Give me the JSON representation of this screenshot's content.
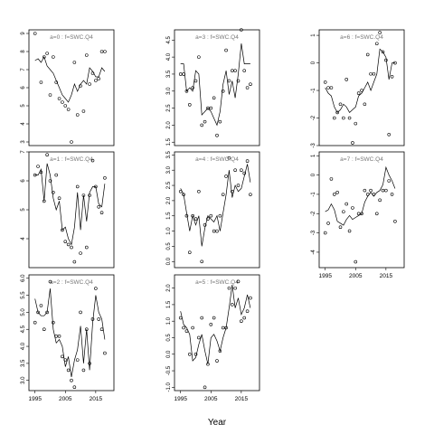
{
  "xlabel": "Year",
  "chart_data": [
    {
      "type": "scatter",
      "title": "a=0 : f=SWC.Q4",
      "xlim": [
        1993,
        2021
      ],
      "ylim": [
        2.8,
        9.2
      ],
      "yticks": [
        3,
        4,
        5,
        6,
        7,
        8,
        9
      ],
      "xticks": [],
      "ytick_labels": [
        "3",
        "4",
        "5",
        "6",
        "7",
        "8",
        "9"
      ],
      "xtick_labels": [],
      "points": {
        "x": [
          1995,
          1997,
          1998,
          1999,
          2000,
          2001,
          2002,
          2003,
          2004,
          2005,
          2006,
          2007,
          2008,
          2009,
          2010,
          2011,
          2012,
          2013,
          2014,
          2015,
          2016,
          2017,
          2018
        ],
        "y": [
          9.0,
          6.3,
          7.7,
          7.9,
          5.6,
          7.7,
          6.3,
          5.4,
          5.2,
          5.0,
          4.8,
          3.0,
          7.4,
          4.5,
          6.1,
          4.7,
          7.8,
          6.2,
          6.8,
          6.4,
          6.5,
          8.0,
          8.0
        ]
      },
      "line": {
        "x": [
          1995,
          1996,
          1997,
          1998,
          1999,
          2000,
          2001,
          2002,
          2003,
          2004,
          2005,
          2006,
          2007,
          2008,
          2009,
          2010,
          2011,
          2012,
          2013,
          2014,
          2015,
          2016,
          2017,
          2018
        ],
        "y": [
          7.5,
          7.6,
          7.4,
          7.7,
          7.2,
          7.0,
          6.8,
          6.4,
          6.0,
          5.6,
          5.4,
          5.2,
          5.6,
          6.2,
          5.8,
          6.2,
          6.4,
          6.2,
          7.1,
          6.9,
          6.6,
          6.6,
          7.1,
          6.9
        ]
      }
    },
    {
      "type": "scatter",
      "title": "a=3 : f=SWC.Q4",
      "xlim": [
        1993,
        2021
      ],
      "ylim": [
        1.4,
        4.8
      ],
      "yticks": [
        1.5,
        2.0,
        2.5,
        3.0,
        3.5,
        4.0,
        4.5
      ],
      "xticks": [],
      "ytick_labels": [
        "1.5",
        "2.0",
        "2.5",
        "3.0",
        "3.5",
        "4.0",
        "4.5"
      ],
      "xtick_labels": [],
      "points": {
        "x": [
          1995,
          1996,
          1997,
          1998,
          1999,
          2000,
          2001,
          2002,
          2003,
          2004,
          2005,
          2006,
          2007,
          2008,
          2009,
          2010,
          2011,
          2012,
          2013,
          2014,
          2015,
          2016,
          2017,
          2018
        ],
        "y": [
          3.5,
          3.5,
          3.0,
          2.6,
          3.1,
          3.3,
          4.0,
          2.0,
          2.1,
          2.5,
          2.5,
          2.8,
          1.7,
          2.1,
          3.0,
          4.2,
          3.3,
          3.6,
          3.6,
          3.3,
          4.8,
          3.6,
          3.1,
          3.2
        ]
      },
      "line": {
        "x": [
          1995,
          1996,
          1997,
          1998,
          1999,
          2000,
          2001,
          2002,
          2003,
          2004,
          2005,
          2006,
          2007,
          2008,
          2009,
          2010,
          2011,
          2012,
          2013,
          2014,
          2015,
          2016,
          2017,
          2018
        ],
        "y": [
          3.8,
          3.8,
          3.0,
          3.1,
          3.0,
          3.6,
          3.5,
          2.3,
          2.4,
          2.5,
          2.4,
          2.2,
          2.0,
          2.4,
          3.2,
          3.6,
          2.9,
          3.3,
          2.8,
          3.5,
          4.4,
          3.8,
          3.8,
          3.8
        ]
      }
    },
    {
      "type": "scatter",
      "title": "a=6 : f=SWC.Q4",
      "xlim": [
        1993,
        2021
      ],
      "ylim": [
        -3.0,
        1.2
      ],
      "yticks": [
        -3,
        -2,
        -1,
        0,
        1
      ],
      "xticks": [],
      "ytick_labels": [
        "-3",
        "-2",
        "-1",
        "0",
        "1"
      ],
      "xtick_labels": [],
      "points": {
        "x": [
          1995,
          1996,
          1997,
          1998,
          1999,
          2000,
          2001,
          2002,
          2003,
          2004,
          2005,
          2006,
          2007,
          2008,
          2009,
          2010,
          2011,
          2012,
          2013,
          2014,
          2015,
          2016,
          2017,
          2018
        ],
        "y": [
          -0.7,
          -0.9,
          -0.9,
          -2.0,
          -1.8,
          -1.5,
          -2.0,
          -0.6,
          -2.0,
          -2.9,
          -2.2,
          -1.1,
          -1.0,
          -1.5,
          0.3,
          -0.4,
          -0.4,
          0.7,
          1.1,
          0.4,
          0.1,
          -2.6,
          -0.5,
          0.0
        ]
      },
      "line": {
        "x": [
          1995,
          1996,
          1997,
          1998,
          1999,
          2000,
          2001,
          2002,
          2003,
          2004,
          2005,
          2006,
          2007,
          2008,
          2009,
          2010,
          2011,
          2012,
          2013,
          2014,
          2015,
          2016,
          2017,
          2018
        ],
        "y": [
          -0.9,
          -1.1,
          -1.2,
          -1.6,
          -1.8,
          -1.7,
          -1.5,
          -1.6,
          -1.8,
          -1.7,
          -1.6,
          -1.2,
          -1.1,
          -0.9,
          -0.7,
          -1.0,
          -0.7,
          -0.4,
          0.5,
          0.4,
          0.2,
          -0.6,
          0.0,
          0.0
        ]
      }
    },
    {
      "type": "scatter",
      "title": "a=1 : f=SWC.Q4",
      "xlim": [
        1993,
        2021
      ],
      "ylim": [
        3.0,
        7.0
      ],
      "yticks": [
        4,
        5,
        6,
        7
      ],
      "xticks": [],
      "ytick_labels": [
        "4",
        "5",
        "6",
        "7"
      ],
      "xtick_labels": [],
      "points": {
        "x": [
          1995,
          1996,
          1997,
          1998,
          1999,
          2000,
          2001,
          2002,
          2003,
          2004,
          2005,
          2006,
          2007,
          2008,
          2009,
          2010,
          2011,
          2012,
          2013,
          2014,
          2015,
          2016,
          2017,
          2018
        ],
        "y": [
          6.2,
          6.5,
          6.3,
          5.3,
          6.9,
          6.0,
          5.6,
          6.2,
          5.4,
          4.3,
          3.9,
          3.8,
          3.7,
          3.2,
          5.8,
          3.5,
          5.5,
          3.7,
          5.5,
          6.7,
          5.8,
          5.1,
          4.9,
          6.1
        ]
      },
      "line": {
        "x": [
          1995,
          1996,
          1997,
          1998,
          1999,
          2000,
          2001,
          2002,
          2003,
          2004,
          2005,
          2006,
          2007,
          2008,
          2009,
          2010,
          2011,
          2012,
          2013,
          2014,
          2015,
          2016,
          2017,
          2018
        ],
        "y": [
          6.2,
          6.2,
          6.4,
          5.3,
          6.6,
          6.2,
          5.4,
          5.0,
          5.3,
          4.3,
          4.4,
          4.0,
          3.8,
          4.4,
          5.6,
          4.3,
          5.5,
          4.6,
          5.6,
          5.8,
          5.8,
          5.2,
          5.1,
          5.9
        ]
      }
    },
    {
      "type": "scatter",
      "title": "a=4 : f=SWC.Q4",
      "xlim": [
        1993,
        2021
      ],
      "ylim": [
        -0.2,
        3.6
      ],
      "yticks": [
        0.0,
        0.5,
        1.0,
        1.5,
        2.0,
        2.5,
        3.0,
        3.5
      ],
      "xticks": [],
      "ytick_labels": [
        "0.0",
        "0.5",
        "1.0",
        "1.5",
        "2.0",
        "2.5",
        "3.0",
        "3.5"
      ],
      "xtick_labels": [],
      "points": {
        "x": [
          1995,
          1996,
          1997,
          1998,
          1999,
          2000,
          2001,
          2002,
          2003,
          2004,
          2005,
          2006,
          2007,
          2008,
          2009,
          2010,
          2011,
          2012,
          2013,
          2014,
          2015,
          2016,
          2017,
          2018
        ],
        "y": [
          2.3,
          2.2,
          1.5,
          0.3,
          1.5,
          1.4,
          2.3,
          0.0,
          1.2,
          1.4,
          1.5,
          1.0,
          1.0,
          1.5,
          2.2,
          2.8,
          3.4,
          2.3,
          3.0,
          2.5,
          3.0,
          2.9,
          3.3,
          2.2
        ]
      },
      "line": {
        "x": [
          1995,
          1996,
          1997,
          1998,
          1999,
          2000,
          2001,
          2002,
          2003,
          2004,
          2005,
          2006,
          2007,
          2008,
          2009,
          2010,
          2011,
          2012,
          2013,
          2014,
          2015,
          2016,
          2017,
          2018
        ],
        "y": [
          2.4,
          2.2,
          1.6,
          1.0,
          1.5,
          1.2,
          1.5,
          0.5,
          1.1,
          1.5,
          1.4,
          1.3,
          1.5,
          1.0,
          1.6,
          2.2,
          3.0,
          2.1,
          2.5,
          2.3,
          2.4,
          2.8,
          3.2,
          2.6
        ]
      }
    },
    {
      "type": "scatter",
      "title": "a=7 : f=SWC.Q4",
      "xlim": [
        1993,
        2021
      ],
      "ylim": [
        -4.8,
        1.2
      ],
      "yticks": [
        -4,
        -3,
        -2,
        -1,
        0,
        1
      ],
      "xticks": [
        1995,
        2005,
        2015
      ],
      "ytick_labels": [
        "-4",
        "-3",
        "-2",
        "-1",
        "0",
        "1"
      ],
      "xtick_labels": [
        "1995",
        "2005",
        "2015"
      ],
      "points": {
        "x": [
          1995,
          1996,
          1997,
          1998,
          1999,
          2000,
          2001,
          2002,
          2003,
          2004,
          2005,
          2006,
          2007,
          2008,
          2009,
          2010,
          2011,
          2012,
          2013,
          2014,
          2015,
          2016,
          2017,
          2018
        ],
        "y": [
          -3.0,
          -2.5,
          -0.2,
          -1.0,
          -0.9,
          -2.7,
          -1.9,
          -1.5,
          -2.9,
          -1.7,
          -4.5,
          -2.0,
          -2.0,
          -0.8,
          -1.0,
          -0.8,
          -1.0,
          -2.0,
          -1.3,
          -0.8,
          -0.8,
          -0.3,
          -1.0,
          -2.4
        ]
      },
      "line": {
        "x": [
          1995,
          1996,
          1997,
          1998,
          1999,
          2000,
          2001,
          2002,
          2003,
          2004,
          2005,
          2006,
          2007,
          2008,
          2009,
          2010,
          2011,
          2012,
          2013,
          2014,
          2015,
          2016,
          2017,
          2018
        ],
        "y": [
          -1.9,
          -1.8,
          -1.5,
          -1.8,
          -2.4,
          -2.5,
          -2.6,
          -2.3,
          -2.1,
          -2.3,
          -2.2,
          -2.1,
          -2.0,
          -1.4,
          -1.1,
          -0.9,
          -1.1,
          -0.9,
          -0.8,
          -0.5,
          0.4,
          0.0,
          -0.3,
          -0.7
        ]
      }
    },
    {
      "type": "scatter",
      "title": "a=2 : f=SWC.Q4",
      "xlim": [
        1993,
        2021
      ],
      "ylim": [
        2.7,
        6.1
      ],
      "yticks": [
        3.0,
        3.5,
        4.0,
        4.5,
        5.0,
        5.5,
        6.0
      ],
      "xticks": [
        1995,
        2005,
        2015
      ],
      "ytick_labels": [
        "3.0",
        "3.5",
        "4.0",
        "4.5",
        "5.0",
        "5.5",
        "6.0"
      ],
      "xtick_labels": [
        "1995",
        "2005",
        "2015"
      ],
      "points": {
        "x": [
          1995,
          1996,
          1997,
          1998,
          1999,
          2000,
          2001,
          2002,
          2003,
          2004,
          2005,
          2006,
          2007,
          2008,
          2009,
          2010,
          2011,
          2012,
          2013,
          2014,
          2015,
          2016,
          2017,
          2018
        ],
        "y": [
          4.7,
          5.0,
          5.2,
          4.5,
          5.0,
          5.9,
          4.7,
          4.3,
          4.3,
          3.7,
          3.6,
          3.3,
          3.0,
          2.8,
          3.6,
          5.0,
          3.3,
          4.5,
          3.5,
          4.8,
          5.7,
          4.8,
          4.5,
          3.8
        ]
      },
      "line": {
        "x": [
          1995,
          1996,
          1997,
          1998,
          1999,
          2000,
          2001,
          2002,
          2003,
          2004,
          2005,
          2006,
          2007,
          2008,
          2009,
          2010,
          2011,
          2012,
          2013,
          2014,
          2015,
          2016,
          2017,
          2018
        ],
        "y": [
          5.4,
          5.0,
          4.9,
          4.9,
          5.0,
          5.7,
          4.5,
          4.1,
          4.2,
          4.0,
          3.4,
          3.7,
          3.1,
          3.6,
          3.9,
          4.6,
          3.5,
          4.5,
          3.3,
          4.7,
          5.5,
          5.0,
          4.8,
          4.2
        ]
      }
    },
    {
      "type": "scatter",
      "title": "a=5 : f=SWC.Q4",
      "xlim": [
        1993,
        2021
      ],
      "ylim": [
        -1.1,
        2.4
      ],
      "yticks": [
        -1.0,
        -0.5,
        0.0,
        0.5,
        1.0,
        1.5,
        2.0
      ],
      "xticks": [
        1995,
        2005,
        2015
      ],
      "ytick_labels": [
        "-1.0",
        "-0.5",
        "0.0",
        "0.5",
        "1.0",
        "1.5",
        "2.0"
      ],
      "xtick_labels": [
        "1995",
        "2005",
        "2015"
      ],
      "points": {
        "x": [
          1995,
          1996,
          1997,
          1998,
          1999,
          2000,
          2001,
          2002,
          2003,
          2004,
          2005,
          2006,
          2007,
          2008,
          2009,
          2010,
          2011,
          2012,
          2013,
          2014,
          2015,
          2016,
          2017,
          2018
        ],
        "y": [
          1.1,
          0.8,
          0.7,
          0.0,
          0.8,
          0.0,
          0.5,
          1.1,
          -1.0,
          -0.3,
          0.9,
          1.1,
          -0.2,
          0.1,
          0.8,
          0.8,
          2.0,
          1.5,
          2.0,
          2.2,
          1.0,
          1.1,
          1.3,
          1.7
        ]
      },
      "line": {
        "x": [
          1995,
          1996,
          1997,
          1998,
          1999,
          2000,
          2001,
          2002,
          2003,
          2004,
          2005,
          2006,
          2007,
          2008,
          2009,
          2010,
          2011,
          2012,
          2013,
          2014,
          2015,
          2016,
          2017,
          2018
        ],
        "y": [
          1.3,
          0.9,
          0.8,
          0.6,
          -0.2,
          -0.1,
          0.3,
          0.6,
          0.1,
          -0.3,
          0.5,
          0.6,
          0.4,
          0.1,
          0.5,
          0.8,
          1.4,
          2.1,
          1.4,
          1.7,
          1.2,
          1.4,
          1.8,
          1.4
        ]
      }
    }
  ]
}
